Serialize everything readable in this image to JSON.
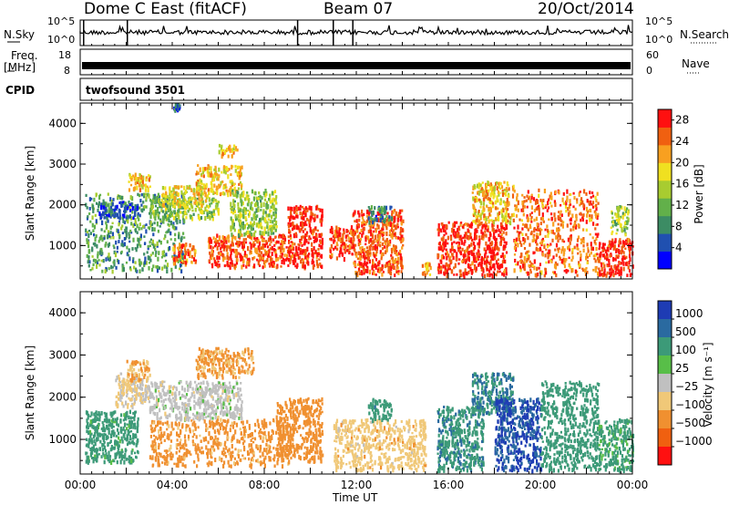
{
  "header": {
    "station": "Dome C East (fitACF)",
    "beam": "Beam 07",
    "date": "20/Oct/2014"
  },
  "strips": {
    "nsky_label": "N.Sky",
    "nsky_hi": "10^5",
    "nsky_lo": "10^0",
    "nsearch_label": "N.Search",
    "nsearch_hi": "10^5",
    "nsearch_lo": "10^0",
    "freq_label_1": "Freq.",
    "freq_label_2": "[MHz]",
    "freq_hi": "18",
    "freq_lo": "8",
    "nave_label": "Nave",
    "nave_hi": "60",
    "nave_lo": "0",
    "cpid_label": "CPID",
    "cpid_value": "twofsound 3501"
  },
  "colors": {
    "power_scale": [
      "#0000ff",
      "#2050b0",
      "#3c8c64",
      "#62b04a",
      "#a8cc30",
      "#f0e020",
      "#f8a020",
      "#f06010",
      "#ff1010"
    ],
    "velocity_scale": [
      "#1e3cb4",
      "#2a6aa0",
      "#3c9a78",
      "#58be48",
      "#c0c0c0",
      "#f0c878",
      "#f09030",
      "#f06010",
      "#ff1010"
    ]
  },
  "chart_data": [
    {
      "type": "heatmap",
      "panel": "power",
      "xlabel": "",
      "ylabel": "Slant Range [km]",
      "xlim": [
        0,
        24
      ],
      "ylim": [
        180,
        4500
      ],
      "y_ticks": [
        "1000",
        "2000",
        "3000",
        "4000"
      ],
      "colorbar": {
        "label": "Power [dB]",
        "ticks": [
          "4",
          "8",
          "12",
          "16",
          "20",
          "24",
          "28"
        ],
        "range": [
          0,
          30
        ]
      },
      "echo_regions": [
        {
          "t": [
            0.2,
            4.5
          ],
          "r": [
            400,
            2300
          ],
          "v": 10
        },
        {
          "t": [
            0.8,
            2.5
          ],
          "r": [
            1700,
            2100
          ],
          "v": 6
        },
        {
          "t": [
            2.0,
            3.0
          ],
          "r": [
            2400,
            2800
          ],
          "v": 20
        },
        {
          "t": [
            3.0,
            6.0
          ],
          "r": [
            1700,
            2200
          ],
          "v": 14
        },
        {
          "t": [
            3.5,
            5.5
          ],
          "r": [
            2000,
            2500
          ],
          "v": 18
        },
        {
          "t": [
            4.0,
            5.0
          ],
          "r": [
            600,
            1100
          ],
          "v": 24
        },
        {
          "t": [
            5.0,
            7.0
          ],
          "r": [
            2300,
            3000
          ],
          "v": 20
        },
        {
          "t": [
            5.5,
            9.0
          ],
          "r": [
            500,
            1300
          ],
          "v": 26
        },
        {
          "t": [
            6.5,
            8.5
          ],
          "r": [
            1300,
            2400
          ],
          "v": 14
        },
        {
          "t": [
            9.0,
            10.5
          ],
          "r": [
            500,
            2000
          ],
          "v": 28
        },
        {
          "t": [
            10.8,
            11.8
          ],
          "r": [
            700,
            1500
          ],
          "v": 27
        },
        {
          "t": [
            11.8,
            14.0
          ],
          "r": [
            300,
            1900
          ],
          "v": 26
        },
        {
          "t": [
            12.5,
            13.5
          ],
          "r": [
            1600,
            2000
          ],
          "v": 8
        },
        {
          "t": [
            14.8,
            15.2
          ],
          "r": [
            300,
            600
          ],
          "v": 22
        },
        {
          "t": [
            15.5,
            18.5
          ],
          "r": [
            300,
            1600
          ],
          "v": 28
        },
        {
          "t": [
            17.0,
            18.8
          ],
          "r": [
            1600,
            2600
          ],
          "v": 20
        },
        {
          "t": [
            18.8,
            22.5
          ],
          "r": [
            300,
            2400
          ],
          "v": 24
        },
        {
          "t": [
            22.5,
            24.0
          ],
          "r": [
            300,
            1200
          ],
          "v": 28
        },
        {
          "t": [
            23.0,
            23.8
          ],
          "r": [
            1300,
            2000
          ],
          "v": 14
        },
        {
          "t": [
            6.0,
            6.8
          ],
          "r": [
            3200,
            3500
          ],
          "v": 20
        },
        {
          "t": [
            4.0,
            4.3
          ],
          "r": [
            4350,
            4500
          ],
          "v": 6
        }
      ]
    },
    {
      "type": "heatmap",
      "panel": "velocity",
      "xlabel": "Time UT",
      "ylabel": "Slant Range [km]",
      "xlim": [
        0,
        24
      ],
      "ylim": [
        180,
        4500
      ],
      "x_ticks": [
        "00:00",
        "04:00",
        "08:00",
        "12:00",
        "16:00",
        "20:00",
        "00:00"
      ],
      "y_ticks": [
        "1000",
        "2000",
        "3000",
        "4000"
      ],
      "colorbar": {
        "label": "Velocity [m s⁻¹]",
        "ticks": [
          "1000",
          "500",
          "100",
          "25",
          "−25",
          "−100",
          "−500",
          "−1000"
        ]
      },
      "echo_regions": [
        {
          "t": [
            0.2,
            2.5
          ],
          "r": [
            500,
            1700
          ],
          "v": 100
        },
        {
          "t": [
            1.5,
            3.0
          ],
          "r": [
            1800,
            2600
          ],
          "v": -25
        },
        {
          "t": [
            2.0,
            3.0
          ],
          "r": [
            2400,
            2900
          ],
          "v": -100
        },
        {
          "t": [
            3.0,
            7.0
          ],
          "r": [
            1500,
            2400
          ],
          "v": 0
        },
        {
          "t": [
            3.0,
            9.0
          ],
          "r": [
            400,
            1500
          ],
          "v": -150
        },
        {
          "t": [
            5.0,
            7.5
          ],
          "r": [
            2500,
            3200
          ],
          "v": -120
        },
        {
          "t": [
            8.5,
            10.5
          ],
          "r": [
            500,
            2000
          ],
          "v": -200
        },
        {
          "t": [
            11.0,
            15.0
          ],
          "r": [
            300,
            1500
          ],
          "v": -60
        },
        {
          "t": [
            12.5,
            13.5
          ],
          "r": [
            1500,
            2000
          ],
          "v": 200
        },
        {
          "t": [
            15.5,
            17.5
          ],
          "r": [
            300,
            1800
          ],
          "v": 250
        },
        {
          "t": [
            17.0,
            18.8
          ],
          "r": [
            1600,
            2600
          ],
          "v": 300
        },
        {
          "t": [
            18.0,
            20.0
          ],
          "r": [
            300,
            2000
          ],
          "v": 800
        },
        {
          "t": [
            20.0,
            22.5
          ],
          "r": [
            300,
            2400
          ],
          "v": 150
        },
        {
          "t": [
            22.5,
            24.0
          ],
          "r": [
            300,
            1500
          ],
          "v": 80
        }
      ]
    }
  ]
}
